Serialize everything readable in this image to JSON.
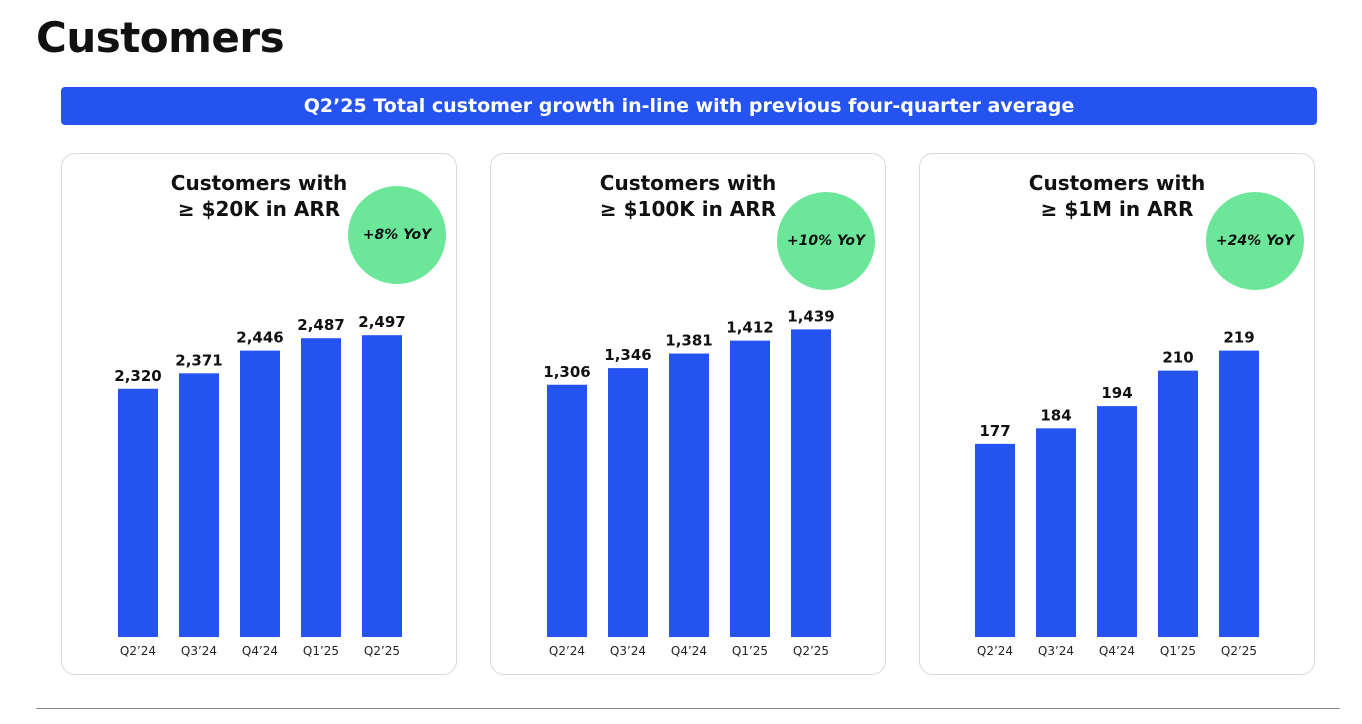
{
  "page": {
    "title": "Customers",
    "banner": "Q2’25 Total customer growth in-line with previous four-quarter average"
  },
  "colors": {
    "bar": "#2453f0",
    "badge": "#6ce79a",
    "banner": "#2453f0"
  },
  "chart_data": [
    {
      "type": "bar",
      "title_line1": "Customers with",
      "title_line2": "≥ $20K in ARR",
      "badge": "+8% YoY",
      "categories": [
        "Q2’24",
        "Q3’24",
        "Q4’24",
        "Q1’25",
        "Q2’25"
      ],
      "values": [
        2320,
        2371,
        2446,
        2487,
        2497
      ],
      "value_labels": [
        "2,320",
        "2,371",
        "2,446",
        "2,487",
        "2,497"
      ],
      "ylim": [
        1500,
        2600
      ],
      "grid": false
    },
    {
      "type": "bar",
      "title_line1": "Customers with",
      "title_line2": "≥ $100K in ARR",
      "badge": "+10% YoY",
      "categories": [
        "Q2’24",
        "Q3’24",
        "Q4’24",
        "Q1’25",
        "Q2’25"
      ],
      "values": [
        1306,
        1346,
        1381,
        1412,
        1439
      ],
      "value_labels": [
        "1,306",
        "1,346",
        "1,381",
        "1,412",
        "1,439"
      ],
      "ylim": [
        700,
        1500
      ],
      "grid": false
    },
    {
      "type": "bar",
      "title_line1": "Customers with",
      "title_line2": "≥ $1M in ARR",
      "badge": "+24% YoY",
      "categories": [
        "Q2’24",
        "Q3’24",
        "Q4’24",
        "Q1’25",
        "Q2’25"
      ],
      "values": [
        177,
        184,
        194,
        210,
        219
      ],
      "value_labels": [
        "177",
        "184",
        "194",
        "210",
        "219"
      ],
      "ylim": [
        90,
        240
      ],
      "grid": false
    }
  ]
}
